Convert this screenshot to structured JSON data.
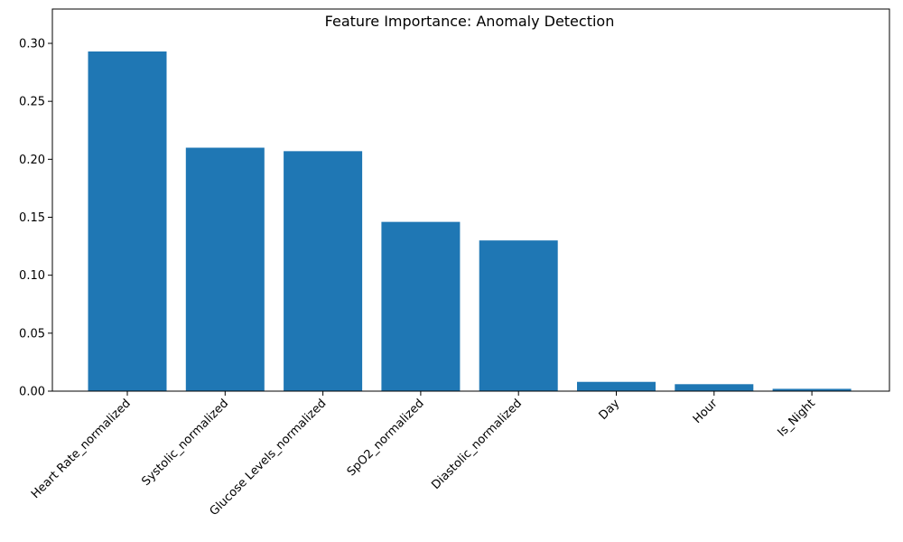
{
  "chart_data": {
    "type": "bar",
    "title": "Feature Importance: Anomaly Detection",
    "xlabel": "",
    "ylabel": "",
    "categories": [
      "Heart Rate_normalized",
      "Systolic_normalized",
      "Glucose Levels_normalized",
      "SpO2_normalized",
      "Diastolic_normalized",
      "Day",
      "Hour",
      "Is_Night"
    ],
    "values": [
      0.293,
      0.21,
      0.207,
      0.146,
      0.13,
      0.008,
      0.006,
      0.002
    ],
    "ylim": [
      0,
      0.3
    ],
    "yticks": [
      "0.00",
      "0.05",
      "0.10",
      "0.15",
      "0.20",
      "0.25",
      "0.30"
    ],
    "bar_color": "#1f77b4",
    "grid": false,
    "x_tick_rotation": 45
  }
}
